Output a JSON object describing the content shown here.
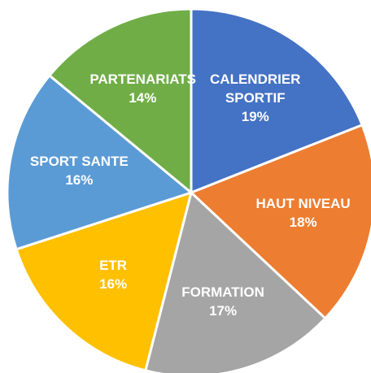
{
  "chart_data": {
    "type": "pie",
    "categories": [
      "CALENDRIER SPORTIF",
      "HAUT NIVEAU",
      "FORMATION",
      "ETR",
      "SPORT SANTE",
      "PARTENARIATS"
    ],
    "values": [
      19,
      18,
      17,
      16,
      16,
      14
    ],
    "value_labels": [
      "19%",
      "18%",
      "17%",
      "16%",
      "16%",
      "14%"
    ],
    "colors": [
      "#4472c4",
      "#ed7d31",
      "#a5a5a5",
      "#ffc000",
      "#5b9bd5",
      "#70ad47"
    ]
  }
}
